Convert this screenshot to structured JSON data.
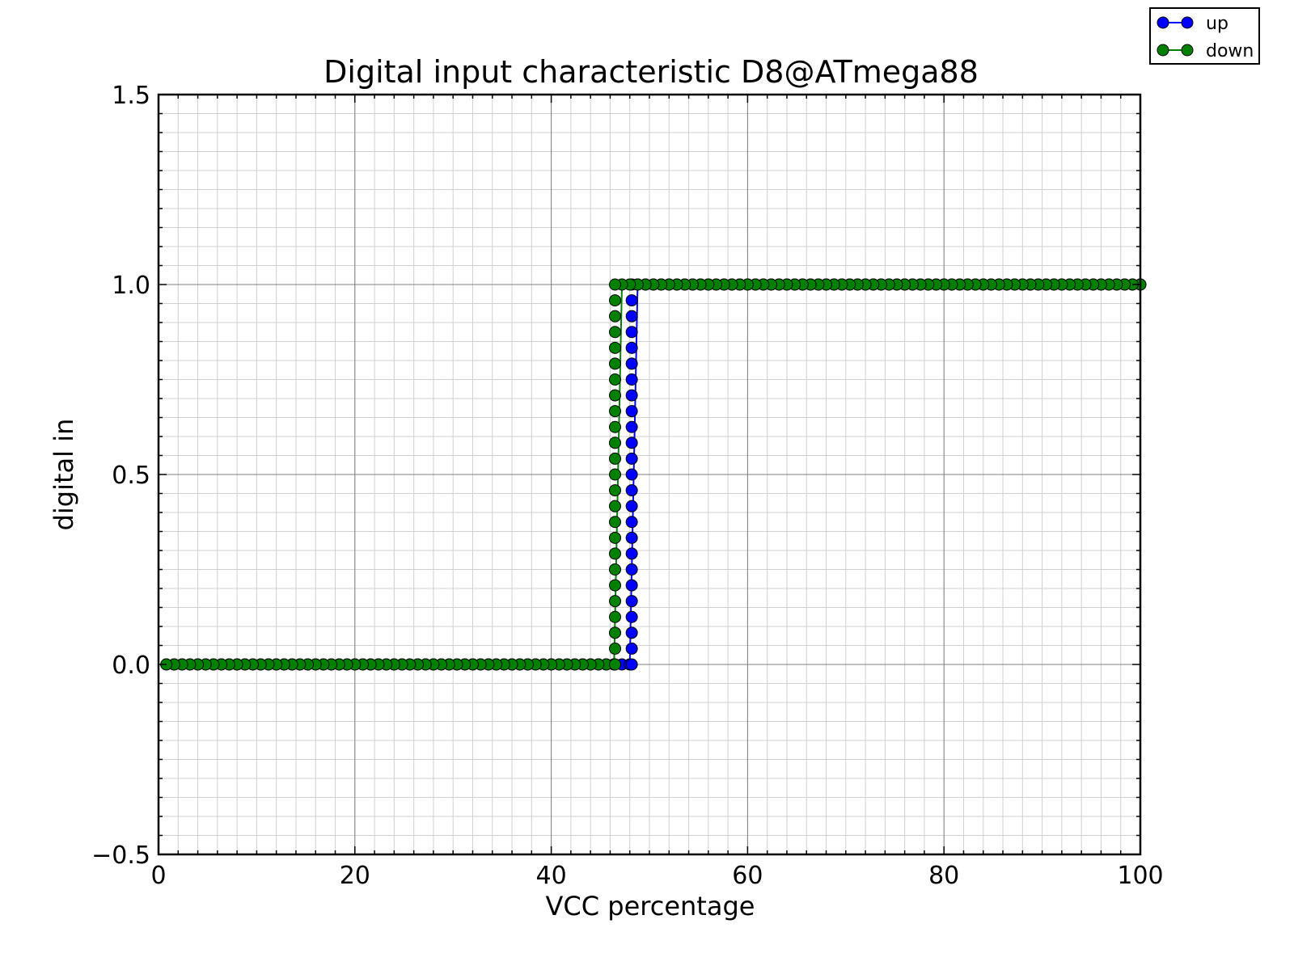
{
  "chart_data": {
    "type": "line",
    "title": "Digital input characteristic D8@ATmega88",
    "xlabel": "VCC percentage",
    "ylabel": "digital in",
    "xlim": [
      0,
      100
    ],
    "ylim": [
      -0.5,
      1.5
    ],
    "xticks": [
      0,
      20,
      40,
      60,
      80,
      100
    ],
    "xtick_labels": [
      "0",
      "20",
      "40",
      "60",
      "80",
      "100"
    ],
    "yticks": [
      -0.5,
      0.0,
      0.5,
      1.0,
      1.5
    ],
    "ytick_labels": [
      "−0.5",
      "0.0",
      "0.5",
      "1.0",
      "1.5"
    ],
    "grid": true,
    "minor_grid": true,
    "legend_position": "top-right",
    "series": [
      {
        "name": "up",
        "color": "#0000ff",
        "marker": "circle",
        "x_start": 0.8,
        "x_end": 100,
        "step": 0.8,
        "threshold": 48.2,
        "low_value": 0,
        "high_value": 1
      },
      {
        "name": "down",
        "color": "#008000",
        "marker": "circle",
        "x_start": 100,
        "x_end": 0.8,
        "step": 0.8,
        "threshold": 46.5,
        "low_value": 0,
        "high_value": 1
      }
    ]
  }
}
